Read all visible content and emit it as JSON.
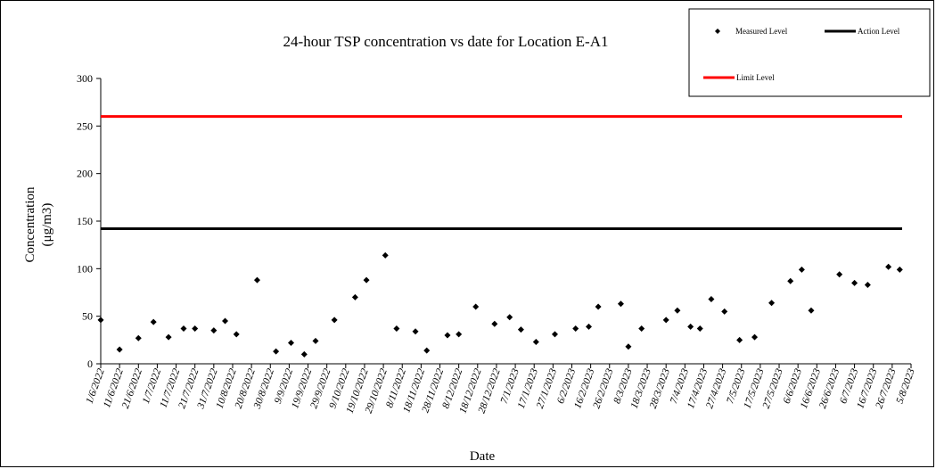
{
  "chart_data": {
    "type": "scatter",
    "title": "24-hour TSP concentration vs date for Location E-A1",
    "xlabel": "Date",
    "ylabel_line1": "Concentration",
    "ylabel_line2": "(μg/m3)",
    "ylim": [
      0,
      300
    ],
    "yticks": [
      "0",
      "50",
      "100",
      "150",
      "200",
      "250",
      "300"
    ],
    "xrange": [
      "2022-06-01",
      "2023-08-05"
    ],
    "xtick_labels": [
      "1/6/2022",
      "11/6/2022",
      "21/6/2022",
      "1/7/2022",
      "11/7/2022",
      "21/7/2022",
      "31/7/2022",
      "10/8/2022",
      "20/8/2022",
      "30/8/2022",
      "9/9/2022",
      "19/9/2022",
      "29/9/2022",
      "9/10/2022",
      "19/10/2022",
      "29/10/2022",
      "8/11/2022",
      "18/11/2022",
      "28/11/2022",
      "8/12/2022",
      "18/12/2022",
      "28/12/2022",
      "7/1/2023",
      "17/1/2023",
      "27/1/2023",
      "6/2/2023",
      "16/2/2023",
      "26/2/2023",
      "8/3/2023",
      "18/3/2023",
      "28/3/2023",
      "7/4/2023",
      "17/4/2023",
      "27/4/2023",
      "7/5/2023",
      "17/5/2023",
      "27/5/2023",
      "6/6/2023",
      "16/6/2023",
      "26/6/2023",
      "6/7/2023",
      "16/7/2023",
      "26/7/2023",
      "5/8/2023"
    ],
    "xtick_dates": [
      "2022-06-01",
      "2022-06-11",
      "2022-06-21",
      "2022-07-01",
      "2022-07-11",
      "2022-07-21",
      "2022-07-31",
      "2022-08-10",
      "2022-08-20",
      "2022-08-30",
      "2022-09-09",
      "2022-09-19",
      "2022-09-29",
      "2022-10-09",
      "2022-10-19",
      "2022-10-29",
      "2022-11-08",
      "2022-11-18",
      "2022-11-28",
      "2022-12-08",
      "2022-12-18",
      "2022-12-28",
      "2023-01-07",
      "2023-01-17",
      "2023-01-27",
      "2023-02-06",
      "2023-02-16",
      "2023-02-26",
      "2023-03-08",
      "2023-03-18",
      "2023-03-28",
      "2023-04-07",
      "2023-04-17",
      "2023-04-27",
      "2023-05-07",
      "2023-05-17",
      "2023-05-27",
      "2023-06-06",
      "2023-06-16",
      "2023-06-26",
      "2023-07-06",
      "2023-07-16",
      "2023-07-26",
      "2023-08-05"
    ],
    "series": [
      {
        "name": "Measured Level",
        "marker": "diamond",
        "color": "#000000",
        "x": [
          "2022-06-01",
          "2022-06-11",
          "2022-06-21",
          "2022-06-29",
          "2022-07-07",
          "2022-07-15",
          "2022-07-21",
          "2022-07-31",
          "2022-08-06",
          "2022-08-12",
          "2022-08-23",
          "2022-09-02",
          "2022-09-10",
          "2022-09-17",
          "2022-09-23",
          "2022-10-03",
          "2022-10-14",
          "2022-10-20",
          "2022-10-30",
          "2022-11-05",
          "2022-11-15",
          "2022-11-21",
          "2022-12-02",
          "2022-12-08",
          "2022-12-17",
          "2022-12-27",
          "2023-01-04",
          "2023-01-10",
          "2023-01-18",
          "2023-01-28",
          "2023-02-08",
          "2023-02-15",
          "2023-02-20",
          "2023-03-04",
          "2023-03-08",
          "2023-03-15",
          "2023-03-28",
          "2023-04-03",
          "2023-04-10",
          "2023-04-15",
          "2023-04-21",
          "2023-04-28",
          "2023-05-06",
          "2023-05-14",
          "2023-05-23",
          "2023-06-02",
          "2023-06-08",
          "2023-06-13",
          "2023-06-28",
          "2023-07-06",
          "2023-07-13",
          "2023-07-24",
          "2023-07-30"
        ],
        "y": [
          46,
          15,
          27,
          44,
          28,
          37,
          37,
          35,
          45,
          31,
          88,
          13,
          22,
          10,
          24,
          46,
          70,
          88,
          114,
          37,
          34,
          14,
          30,
          31,
          60,
          42,
          49,
          36,
          23,
          31,
          37,
          39,
          60,
          63,
          18,
          37,
          46,
          56,
          39,
          37,
          68,
          55,
          25,
          28,
          64,
          87,
          99,
          56,
          94,
          85,
          83,
          102,
          99
        ]
      }
    ],
    "reference_lines": [
      {
        "name": "Action Level",
        "y": 142,
        "color": "#000000"
      },
      {
        "name": "Limit Level",
        "y": 260,
        "color": "#ff0000"
      }
    ],
    "legend": {
      "placement": "top-right",
      "items": [
        {
          "label": "Measured Level",
          "kind": "marker",
          "color": "#000000"
        },
        {
          "label": "Action Level",
          "kind": "line",
          "color": "#000000"
        },
        {
          "label": "Limit Level",
          "kind": "line",
          "color": "#ff0000"
        }
      ]
    },
    "grid": false
  }
}
